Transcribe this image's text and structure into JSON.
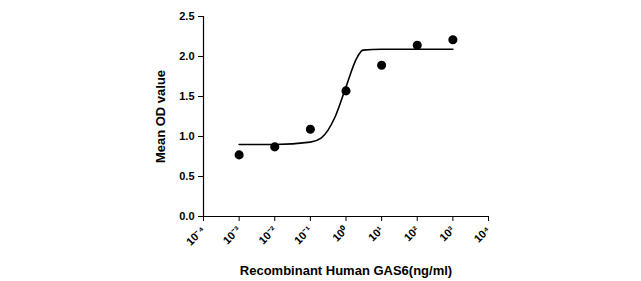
{
  "chart_data": {
    "type": "scatter",
    "x_label": "Recombinant Human GAS6(ng/ml)",
    "y_label": "Mean OD value",
    "log": "x",
    "grid": false,
    "xlim": [
      0.0001,
      10000
    ],
    "xticks": [
      {
        "value": 0.0001,
        "label": "10⁻⁴"
      },
      {
        "value": 0.001,
        "label": "10⁻³"
      },
      {
        "value": 0.01,
        "label": "10⁻²"
      },
      {
        "value": 0.1,
        "label": "10⁻¹"
      },
      {
        "value": 1,
        "label": "10⁰"
      },
      {
        "value": 10,
        "label": "10¹"
      },
      {
        "value": 100,
        "label": "10²"
      },
      {
        "value": 1000,
        "label": "10³"
      },
      {
        "value": 10000,
        "label": "10⁴"
      }
    ],
    "ylim": [
      0,
      2.5
    ],
    "yticks": [
      {
        "value": 0,
        "label": "0.0"
      },
      {
        "value": 0.5,
        "label": "0.5"
      },
      {
        "value": 1,
        "label": "1.0"
      },
      {
        "value": 1.5,
        "label": "1.5"
      },
      {
        "value": 2,
        "label": "2.0"
      },
      {
        "value": 2.5,
        "label": "2.5"
      }
    ],
    "series": [
      {
        "type": "scatter",
        "marker": "circle",
        "color": "#000000",
        "x": [
          0.001,
          0.01,
          0.1,
          1,
          10,
          100,
          1000
        ],
        "values": [
          0.77,
          0.87,
          1.09,
          1.57,
          1.89,
          2.14,
          2.21
        ]
      },
      {
        "type": "line",
        "line_style": "solid",
        "color": "#000000",
        "x": [
          0.001,
          0.01,
          0.1,
          0.2,
          0.5,
          1,
          2,
          3,
          10,
          100,
          1000
        ],
        "values": [
          0.9,
          0.9,
          0.93,
          0.98,
          1.25,
          1.62,
          1.98,
          2.08,
          2.09,
          2.09,
          2.09
        ]
      }
    ]
  }
}
